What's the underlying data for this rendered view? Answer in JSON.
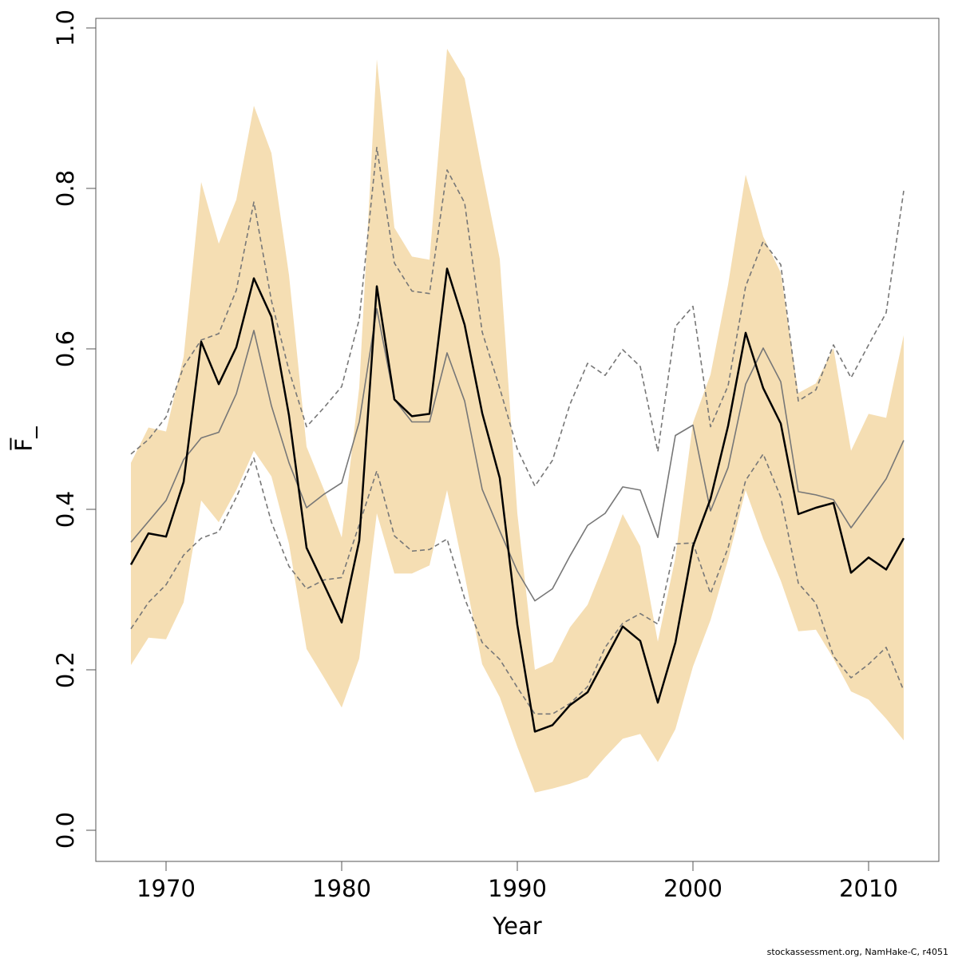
{
  "chart_data": {
    "type": "line",
    "xlabel": "Year",
    "ylabel": "F̅_",
    "xlim": [
      1966,
      2014
    ],
    "ylim": [
      0.0,
      1.0
    ],
    "xticks": [
      1970,
      1980,
      1990,
      2000,
      2010
    ],
    "yticks": [
      "0.0",
      "0.2",
      "0.4",
      "0.6",
      "0.8",
      "1.0"
    ],
    "years": [
      1968,
      1969,
      1970,
      1971,
      1972,
      1973,
      1974,
      1975,
      1976,
      1977,
      1978,
      1979,
      1980,
      1981,
      1982,
      1983,
      1984,
      1985,
      1986,
      1987,
      1988,
      1989,
      1990,
      1991,
      1992,
      1993,
      1994,
      1995,
      1996,
      1997,
      1998,
      1999,
      2000,
      2001,
      2002,
      2003,
      2004,
      2005,
      2006,
      2007,
      2008,
      2009,
      2010,
      2011,
      2012
    ],
    "band": {
      "color": "#f5deb3",
      "lower": [
        0.206,
        0.24,
        0.238,
        0.284,
        0.411,
        0.384,
        0.424,
        0.473,
        0.441,
        0.357,
        0.226,
        0.19,
        0.153,
        0.214,
        0.395,
        0.32,
        0.32,
        0.33,
        0.424,
        0.318,
        0.207,
        0.166,
        0.104,
        0.047,
        0.052,
        0.058,
        0.066,
        0.091,
        0.114,
        0.12,
        0.085,
        0.126,
        0.204,
        0.262,
        0.337,
        0.424,
        0.363,
        0.311,
        0.248,
        0.25,
        0.214,
        0.173,
        0.163,
        0.139,
        0.112
      ],
      "upper": [
        0.458,
        0.502,
        0.497,
        0.59,
        0.808,
        0.731,
        0.786,
        0.903,
        0.844,
        0.692,
        0.478,
        0.424,
        0.365,
        0.552,
        0.961,
        0.751,
        0.715,
        0.711,
        0.974,
        0.937,
        0.822,
        0.712,
        0.395,
        0.2,
        0.21,
        0.253,
        0.281,
        0.335,
        0.394,
        0.354,
        0.235,
        0.34,
        0.508,
        0.568,
        0.68,
        0.817,
        0.74,
        0.695,
        0.545,
        0.557,
        0.601,
        0.473,
        0.519,
        0.514,
        0.617
      ]
    },
    "series": [
      {
        "color": "#000000",
        "style": "solid",
        "width": 2.5,
        "values": [
          0.331,
          0.37,
          0.366,
          0.434,
          0.609,
          0.556,
          0.602,
          0.688,
          0.64,
          0.517,
          0.352,
          0.306,
          0.259,
          0.361,
          0.678,
          0.537,
          0.516,
          0.519,
          0.7,
          0.63,
          0.52,
          0.439,
          0.256,
          0.123,
          0.131,
          0.156,
          0.172,
          0.213,
          0.254,
          0.236,
          0.159,
          0.234,
          0.354,
          0.413,
          0.504,
          0.62,
          0.551,
          0.507,
          0.394,
          0.402,
          0.408,
          0.321,
          0.34,
          0.325,
          0.364
        ]
      },
      {
        "color": "#777777",
        "style": "solid",
        "width": 1.6,
        "values": [
          0.359,
          0.385,
          0.411,
          0.462,
          0.489,
          0.496,
          0.544,
          0.623,
          0.529,
          0.458,
          0.402,
          0.419,
          0.433,
          0.509,
          0.65,
          0.537,
          0.509,
          0.509,
          0.595,
          0.535,
          0.425,
          0.373,
          0.323,
          0.286,
          0.301,
          0.342,
          0.38,
          0.395,
          0.428,
          0.424,
          0.365,
          0.492,
          0.505,
          0.398,
          0.452,
          0.556,
          0.601,
          0.559,
          0.422,
          0.418,
          0.412,
          0.377,
          0.407,
          0.438,
          0.486
        ]
      },
      {
        "color": "#777777",
        "style": "dashed",
        "width": 1.6,
        "values": [
          0.469,
          0.487,
          0.515,
          0.578,
          0.611,
          0.619,
          0.673,
          0.783,
          0.66,
          0.573,
          0.503,
          0.527,
          0.553,
          0.637,
          0.851,
          0.707,
          0.672,
          0.669,
          0.823,
          0.782,
          0.621,
          0.551,
          0.475,
          0.429,
          0.461,
          0.531,
          0.582,
          0.567,
          0.599,
          0.578,
          0.472,
          0.628,
          0.653,
          0.503,
          0.554,
          0.678,
          0.734,
          0.705,
          0.535,
          0.549,
          0.605,
          0.564,
          0.605,
          0.645,
          0.797
        ]
      },
      {
        "color": "#777777",
        "style": "dashed",
        "width": 1.6,
        "values": [
          0.251,
          0.284,
          0.306,
          0.343,
          0.364,
          0.372,
          0.415,
          0.464,
          0.384,
          0.329,
          0.301,
          0.312,
          0.315,
          0.381,
          0.448,
          0.367,
          0.348,
          0.35,
          0.363,
          0.289,
          0.234,
          0.213,
          0.178,
          0.145,
          0.145,
          0.158,
          0.179,
          0.228,
          0.258,
          0.27,
          0.257,
          0.357,
          0.358,
          0.295,
          0.352,
          0.436,
          0.469,
          0.415,
          0.308,
          0.283,
          0.217,
          0.19,
          0.207,
          0.228,
          0.174
        ]
      }
    ]
  },
  "footer": "stockassessment.org, NamHake-C, r4051"
}
